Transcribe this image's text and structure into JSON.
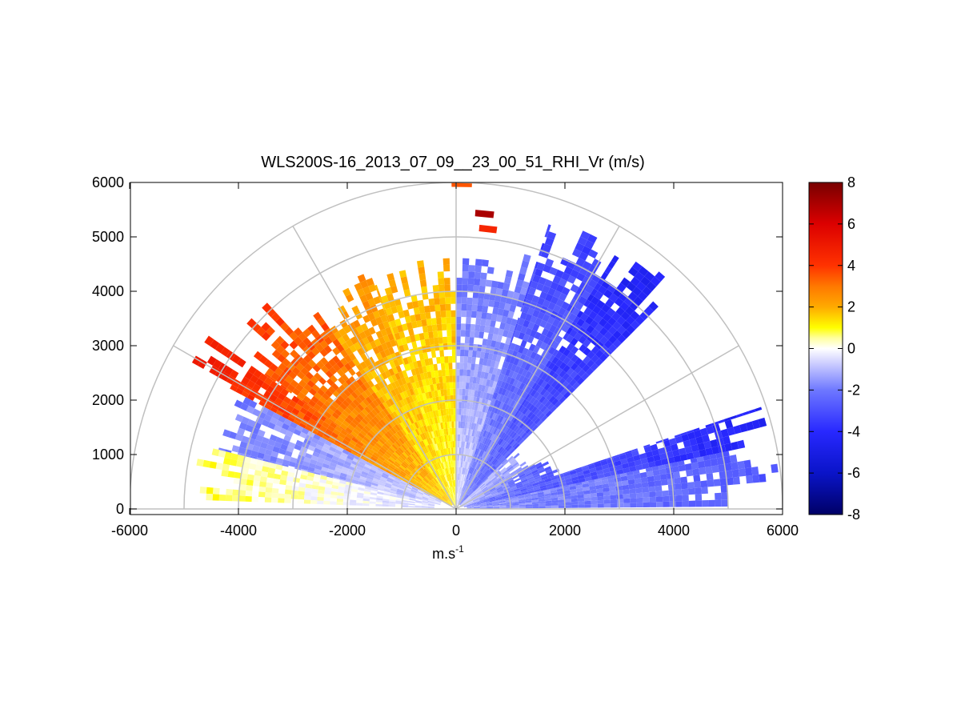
{
  "chart_data": {
    "type": "heatmap",
    "subtype": "polar RHI sector scan",
    "title": "WLS200S-16_2013_07_09__23_00_51_RHI_Vr (m/s)",
    "xlabel": "m.s",
    "xlabel_superscript": "-1",
    "ylabel": "",
    "xlim": [
      -6000,
      6000
    ],
    "ylim": [
      0,
      6000
    ],
    "x_ticks": [
      "-6000",
      "-4000",
      "-2000",
      "0",
      "2000",
      "4000",
      "6000"
    ],
    "y_ticks": [
      "0",
      "1000",
      "2000",
      "3000",
      "4000",
      "5000",
      "6000"
    ],
    "polar_grid": {
      "ranges": [
        1000,
        2000,
        3000,
        4000,
        5000,
        6000
      ],
      "angles_deg": [
        0,
        30,
        60,
        90,
        120,
        150,
        180
      ]
    },
    "colorbar": {
      "range": [
        -8,
        8
      ],
      "ticks": [
        "-8",
        "-6",
        "-4",
        "-2",
        "0",
        "2",
        "4",
        "6",
        "8"
      ],
      "colormap": [
        [
          -8,
          "#000066"
        ],
        [
          -6,
          "#0a14c8"
        ],
        [
          -4,
          "#2828ff"
        ],
        [
          -2,
          "#6e78ff"
        ],
        [
          -0.5,
          "#dcdcff"
        ],
        [
          0,
          "#ffffff"
        ],
        [
          0.5,
          "#ffffa0"
        ],
        [
          1,
          "#ffff00"
        ],
        [
          2,
          "#ffaa00"
        ],
        [
          3,
          "#ff7800"
        ],
        [
          4,
          "#ff3200"
        ],
        [
          6,
          "#dc0000"
        ],
        [
          8,
          "#780000"
        ]
      ]
    },
    "sectors": [
      {
        "az_start": 0.5,
        "az_end": 12,
        "r_min": 200,
        "r_max": 5900,
        "values": [
          -1.5,
          -2.8
        ]
      },
      {
        "az_start": 12,
        "az_end": 18.5,
        "r_min": 150,
        "r_max": 6000,
        "values": [
          -2.0,
          -4.5
        ]
      },
      {
        "az_start": 18.5,
        "az_end": 30,
        "r_min": 100,
        "r_max": 2000,
        "values": [
          -1.0,
          -3.0
        ]
      },
      {
        "az_start": 30,
        "az_end": 48,
        "r_min": 100,
        "r_max": 1500,
        "values": [
          -1.0,
          -1.5
        ]
      },
      {
        "az_start": 45,
        "az_end": 58,
        "r_min": 100,
        "r_max": 5800,
        "values": [
          -2.0,
          -4.5
        ]
      },
      {
        "az_start": 58,
        "az_end": 72,
        "r_min": 100,
        "r_max": 5600,
        "values": [
          -1.5,
          -3.5
        ]
      },
      {
        "az_start": 72,
        "az_end": 90,
        "r_min": 50,
        "r_max": 4800,
        "values": [
          -0.6,
          -2.2
        ]
      },
      {
        "az_start": 90,
        "az_end": 110,
        "r_min": 50,
        "r_max": 4600,
        "values": [
          0.8,
          2.0
        ]
      },
      {
        "az_start": 110,
        "az_end": 125,
        "r_min": 80,
        "r_max": 4600,
        "values": [
          1.0,
          2.5
        ]
      },
      {
        "az_start": 125,
        "az_end": 145,
        "r_min": 100,
        "r_max": 5100,
        "values": [
          1.5,
          4.0
        ]
      },
      {
        "az_start": 145,
        "az_end": 152,
        "r_min": 150,
        "r_max": 5500,
        "values": [
          1.5,
          5.0
        ]
      },
      {
        "az_start": 152,
        "az_end": 166,
        "r_min": 300,
        "r_max": 4500,
        "values": [
          -0.6,
          -2.0
        ]
      },
      {
        "az_start": 166,
        "az_end": 178,
        "r_min": 400,
        "r_max": 4800,
        "values": [
          -0.5,
          0.8
        ]
      }
    ],
    "isolated_cells": [
      {
        "az": 89,
        "r": 5980,
        "value": 3.5
      },
      {
        "az": 84.5,
        "r": 5450,
        "value": 7
      },
      {
        "az": 83.5,
        "r": 5180,
        "value": 4.5
      }
    ]
  }
}
